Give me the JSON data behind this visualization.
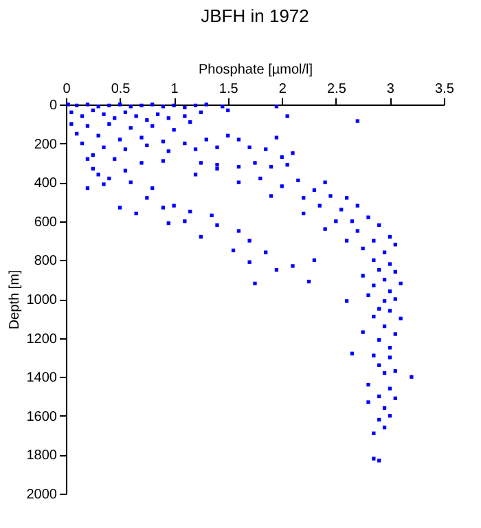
{
  "chart_data": {
    "type": "scatter",
    "title": "JBFH in 1972",
    "xlabel": "Phosphate [µmol/l]",
    "ylabel": "Depth [m]",
    "xlim": [
      0,
      3.5
    ],
    "xticks": [
      0,
      0.5,
      1,
      1.5,
      2,
      2.5,
      3,
      3.5
    ],
    "ylim": [
      2000,
      0
    ],
    "yticks": [
      0,
      200,
      400,
      600,
      800,
      1000,
      1200,
      1400,
      1600,
      1800,
      2000
    ],
    "grid": false,
    "marker": "square",
    "series": [
      {
        "color": "#0000ff",
        "x": [
          0.02,
          0.1,
          0.2,
          0.3,
          0.4,
          0.5,
          0.6,
          0.7,
          0.8,
          0.9,
          1.0,
          1.1,
          1.2,
          1.3,
          1.45,
          1.5,
          0.05,
          0.15,
          0.25,
          0.35,
          0.45,
          0.55,
          0.65,
          0.75,
          0.85,
          0.95,
          1.1,
          0.05,
          0.2,
          0.4,
          0.6,
          0.8,
          1.0,
          1.15,
          1.25,
          1.95,
          2.05,
          2.7,
          0.1,
          0.3,
          0.5,
          0.7,
          0.9,
          1.1,
          1.3,
          0.15,
          0.35,
          0.55,
          0.75,
          0.95,
          1.2,
          1.4,
          1.5,
          1.6,
          1.7,
          1.85,
          1.95,
          0.25,
          0.45,
          0.7,
          0.9,
          1.25,
          1.4,
          1.6,
          1.75,
          1.9,
          2.0,
          2.1,
          2.05,
          0.2,
          0.25,
          0.3,
          0.35,
          0.2,
          0.4,
          0.55,
          0.6,
          0.75,
          0.8,
          0.5,
          0.65,
          0.9,
          1.0,
          1.15,
          1.35,
          1.1,
          1.4,
          0.95,
          1.25,
          1.6,
          1.7,
          1.55,
          1.85,
          1.7,
          2.1,
          1.95,
          2.3,
          2.25,
          1.75,
          1.2,
          1.4,
          1.6,
          1.8,
          2.0,
          2.15,
          2.3,
          2.4,
          1.9,
          2.2,
          2.45,
          2.6,
          2.35,
          2.55,
          2.7,
          2.2,
          2.5,
          2.65,
          2.8,
          2.4,
          2.7,
          2.9,
          2.6,
          2.85,
          3.0,
          2.75,
          2.95,
          3.05,
          2.85,
          3.0,
          2.9,
          3.05,
          2.75,
          2.95,
          2.85,
          3.1,
          3.0,
          2.8,
          2.95,
          3.05,
          2.6,
          2.9,
          3.0,
          2.85,
          3.1,
          2.95,
          2.75,
          3.05,
          2.9,
          3.0,
          2.65,
          2.85,
          3.0,
          2.9,
          3.05,
          2.95,
          3.2,
          2.8,
          3.0,
          2.9,
          3.05,
          2.8,
          2.95,
          3.0,
          2.9,
          2.95,
          2.85,
          2.85,
          2.9
        ],
        "values": [
          0,
          5,
          0,
          10,
          5,
          0,
          10,
          5,
          0,
          10,
          5,
          15,
          5,
          0,
          10,
          30,
          40,
          60,
          30,
          50,
          70,
          40,
          60,
          80,
          50,
          70,
          60,
          100,
          110,
          100,
          120,
          110,
          130,
          90,
          40,
          10,
          60,
          85,
          150,
          160,
          180,
          170,
          190,
          200,
          180,
          200,
          220,
          230,
          210,
          240,
          230,
          220,
          160,
          180,
          220,
          230,
          170,
          260,
          280,
          300,
          290,
          300,
          310,
          320,
          300,
          320,
          270,
          250,
          310,
          280,
          330,
          360,
          410,
          430,
          380,
          340,
          400,
          480,
          430,
          530,
          560,
          530,
          520,
          550,
          570,
          600,
          620,
          610,
          680,
          650,
          700,
          750,
          760,
          810,
          830,
          850,
          800,
          910,
          920,
          360,
          330,
          400,
          380,
          420,
          390,
          440,
          400,
          470,
          480,
          470,
          480,
          520,
          540,
          520,
          560,
          600,
          600,
          580,
          640,
          650,
          620,
          700,
          700,
          680,
          740,
          760,
          720,
          800,
          820,
          850,
          860,
          880,
          900,
          930,
          920,
          960,
          980,
          1010,
          1000,
          1010,
          1050,
          1060,
          1090,
          1100,
          1140,
          1170,
          1180,
          1210,
          1250,
          1280,
          1290,
          1300,
          1340,
          1370,
          1380,
          1400,
          1440,
          1460,
          1500,
          1510,
          1530,
          1560,
          1600,
          1620,
          1660,
          1690,
          1820,
          1830
        ]
      }
    ]
  }
}
